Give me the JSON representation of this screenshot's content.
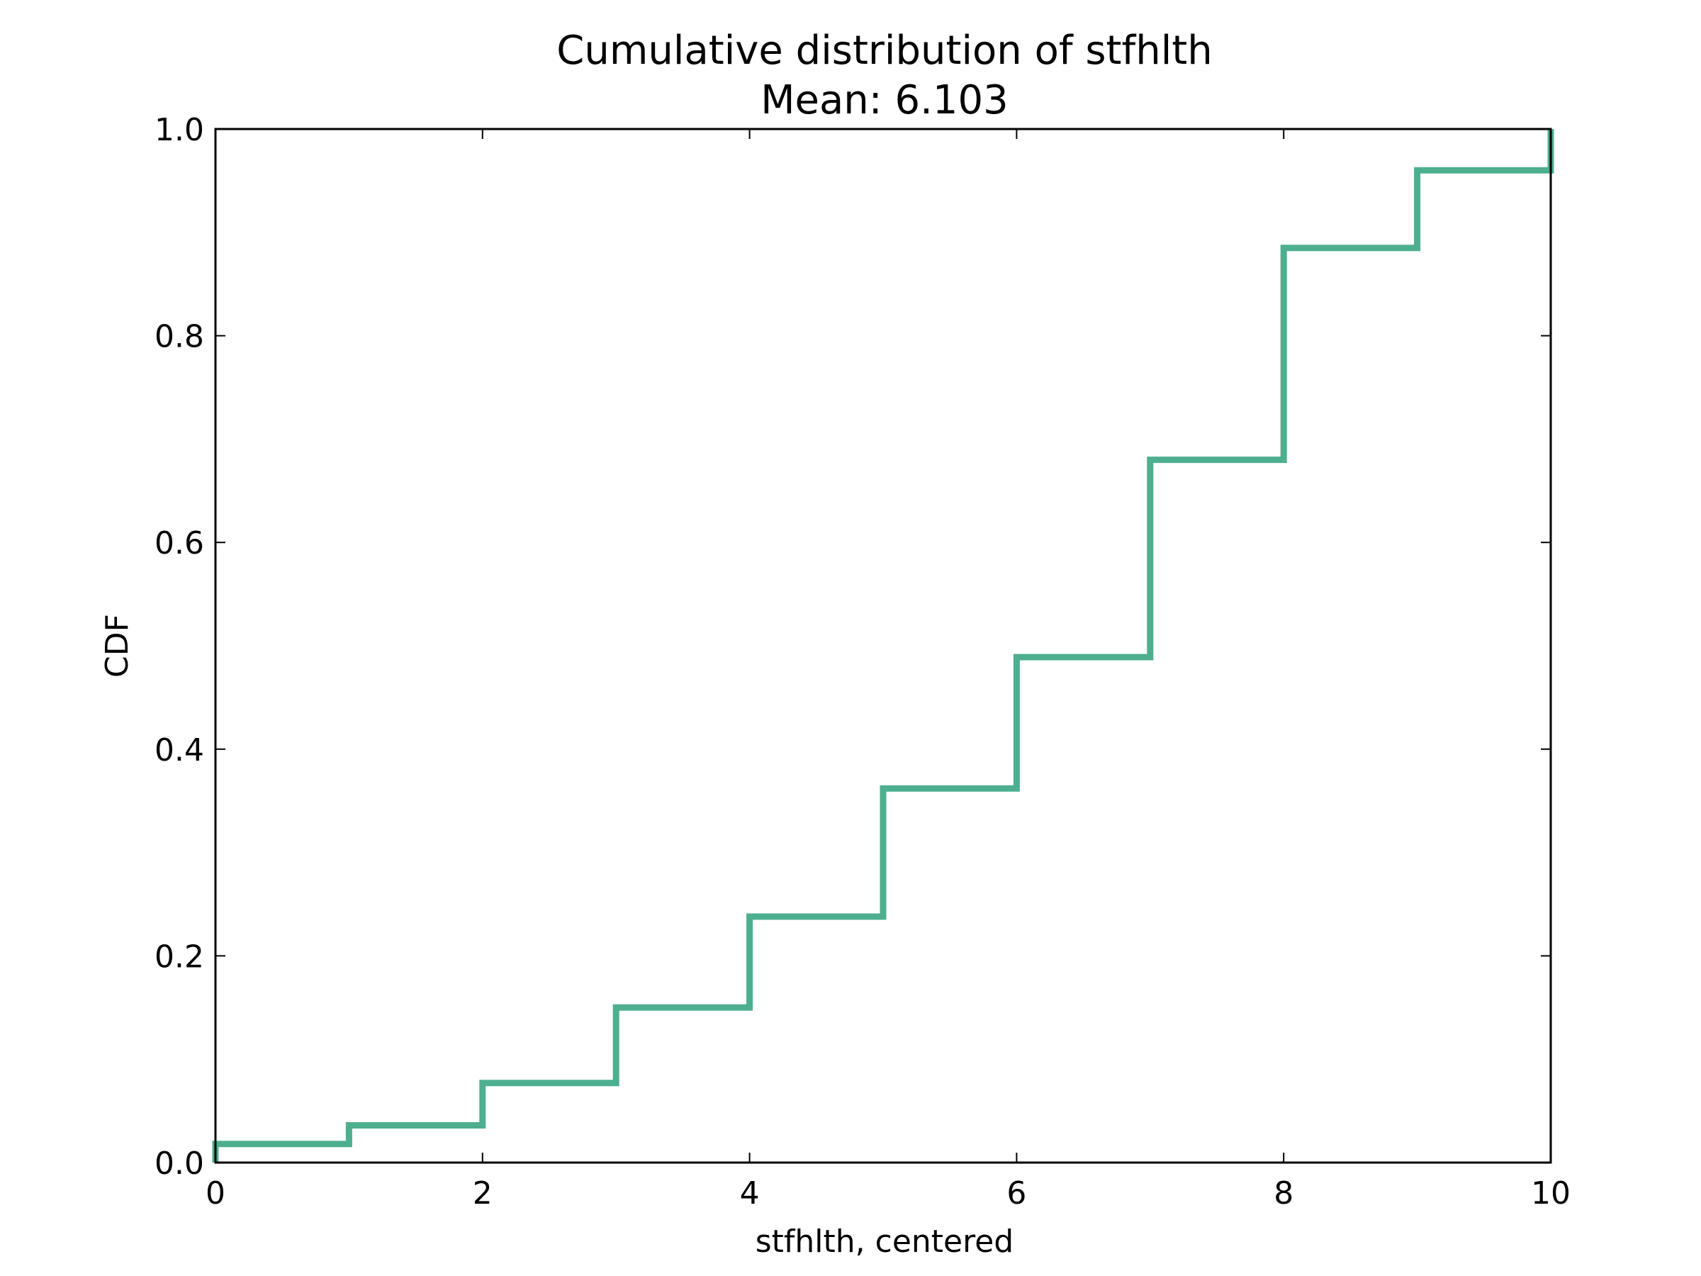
{
  "chart_data": {
    "type": "line",
    "step": "post",
    "title": "Cumulative distribution of stfhlth",
    "subtitle": "Mean: 6.103",
    "xlabel": "stfhlth, centered",
    "ylabel": "CDF",
    "xlim": [
      0,
      10
    ],
    "ylim": [
      0,
      1
    ],
    "xticks": [
      0,
      2,
      4,
      6,
      8,
      10
    ],
    "xtick_labels": [
      "0",
      "2",
      "4",
      "6",
      "8",
      "10"
    ],
    "yticks": [
      0,
      0.2,
      0.4,
      0.6,
      0.8,
      1.0
    ],
    "ytick_labels": [
      "0.0",
      "0.2",
      "0.4",
      "0.6",
      "0.8",
      "1.0"
    ],
    "grid": false,
    "legend": "none",
    "series": [
      {
        "color": "#4daf8f",
        "x": [
          0,
          1,
          2,
          3,
          4,
          5,
          6,
          7,
          8,
          9,
          10
        ],
        "y": [
          0.018,
          0.036,
          0.077,
          0.15,
          0.238,
          0.362,
          0.489,
          0.68,
          0.885,
          0.96,
          1.0
        ]
      }
    ]
  }
}
